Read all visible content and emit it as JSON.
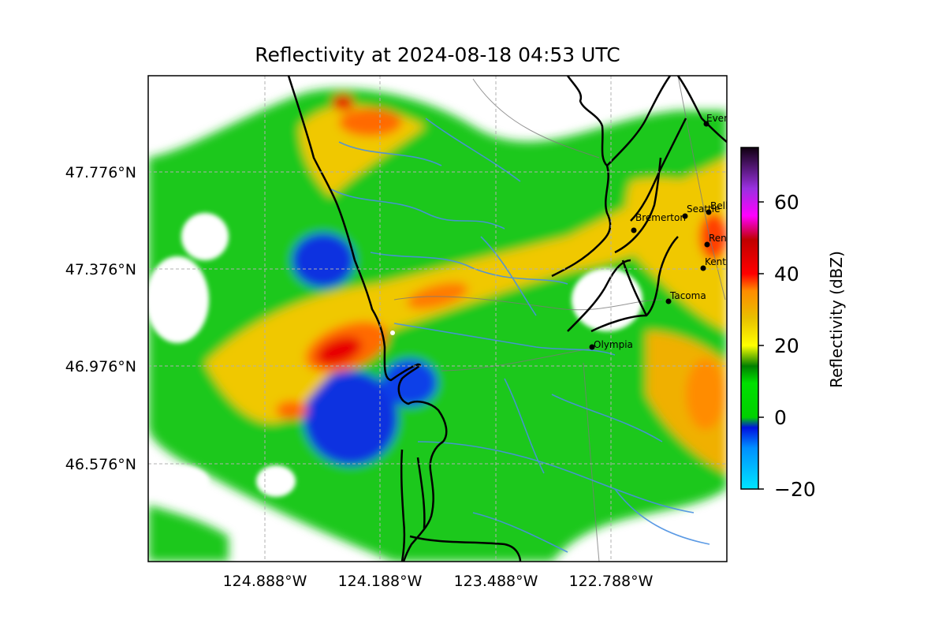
{
  "title": "Reflectivity at 2024-08-18 04:53 UTC",
  "map": {
    "lat_ticks": [
      "47.776°N",
      "47.376°N",
      "46.976°N",
      "46.576°N"
    ],
    "lon_ticks": [
      "124.888°W",
      "124.188°W",
      "123.488°W",
      "122.788°W"
    ],
    "cities": [
      {
        "name": "Everett"
      },
      {
        "name": "Seattle"
      },
      {
        "name": "Bellevue"
      },
      {
        "name": "Bremerton"
      },
      {
        "name": "Renton"
      },
      {
        "name": "Kent"
      },
      {
        "name": "Tacoma"
      },
      {
        "name": "Olympia"
      }
    ]
  },
  "colorbar": {
    "label": "Reflectivity (dBZ)",
    "ticks": [
      "60",
      "40",
      "20",
      "0",
      "−20"
    ],
    "min": -20,
    "max": 75
  },
  "colors": {
    "coast": "#000000",
    "rivers": "#4a90e2",
    "roads": "#7a7a7a",
    "grid": "#b0b0b0"
  }
}
